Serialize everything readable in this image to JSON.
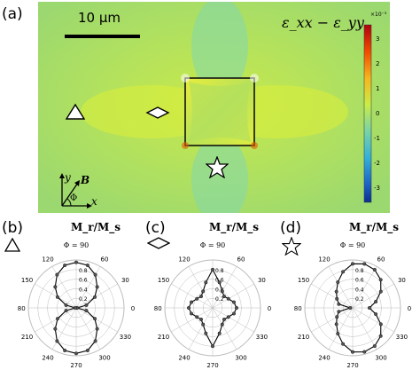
{
  "panel_a": {
    "letter": "(a)",
    "scale_bar_label": "10 μm",
    "strain_label": "ε_xx − ε_yy",
    "colorbar": {
      "exponent": "×10⁻³",
      "ticks": [
        "3",
        "2",
        "1",
        "0",
        "-1",
        "-2",
        "-3"
      ],
      "colors": [
        "#c21f00",
        "#f06a00",
        "#f7c219",
        "#c2ea4a",
        "#7fd4a0",
        "#38b8d6",
        "#0d55b8"
      ]
    },
    "axes": {
      "y": "y",
      "x": "x",
      "b": "B",
      "phi": "Φ"
    },
    "markers": [
      "triangle",
      "diamond",
      "star"
    ]
  },
  "polar_common": {
    "title": "M_r/M_s",
    "phi_label": "Φ = 90",
    "angle_labels": [
      "120",
      "60",
      "150",
      "30",
      "180",
      "0",
      "210",
      "330",
      "240",
      "300",
      "270"
    ]
  },
  "polar_panels": [
    {
      "letter": "(b)",
      "marker": "triangle-icon",
      "r_ticks": [
        "0.2",
        "0.4",
        "0.6",
        "0.8"
      ]
    },
    {
      "letter": "(c)",
      "marker": "diamond-icon",
      "r_ticks": [
        "0.2",
        "0.4",
        "0.6",
        "0.8"
      ]
    },
    {
      "letter": "(d)",
      "marker": "star-icon",
      "r_ticks": [
        "0.2",
        "0.4",
        "0.6",
        "0.8"
      ]
    }
  ],
  "chart_data": [
    {
      "type": "scatter",
      "polar": true,
      "title": "M_r/M_s",
      "r_ticks": [
        0.2,
        0.4,
        0.6,
        0.8
      ],
      "series": [
        {
          "theta_deg": [
            0,
            15,
            30,
            45,
            60,
            75,
            90,
            105,
            120,
            135,
            150,
            165,
            180,
            195,
            210,
            225,
            240,
            255,
            270,
            285,
            300,
            315,
            330,
            345
          ],
          "r": [
            0.02,
            0.22,
            0.45,
            0.62,
            0.8,
            0.92,
            0.95,
            0.92,
            0.8,
            0.62,
            0.45,
            0.22,
            0.02,
            0.22,
            0.45,
            0.62,
            0.8,
            0.92,
            0.95,
            0.92,
            0.8,
            0.62,
            0.45,
            0.22
          ]
        }
      ]
    },
    {
      "type": "scatter",
      "polar": true,
      "title": "M_r/M_s",
      "r_ticks": [
        0.2,
        0.4,
        0.6,
        0.8
      ],
      "series": [
        {
          "theta_deg": [
            0,
            15,
            30,
            45,
            60,
            75,
            90,
            105,
            120,
            135,
            150,
            165,
            180,
            195,
            210,
            225,
            240,
            255,
            270,
            285,
            300,
            315,
            330,
            345
          ],
          "r": [
            0.5,
            0.46,
            0.38,
            0.34,
            0.4,
            0.55,
            0.8,
            0.55,
            0.4,
            0.34,
            0.38,
            0.46,
            0.5,
            0.46,
            0.38,
            0.34,
            0.4,
            0.55,
            0.8,
            0.55,
            0.4,
            0.34,
            0.38,
            0.46
          ]
        }
      ]
    },
    {
      "type": "scatter",
      "polar": true,
      "title": "M_r/M_s",
      "r_ticks": [
        0.2,
        0.4,
        0.6,
        0.8
      ],
      "series": [
        {
          "theta_deg": [
            0,
            15,
            30,
            45,
            60,
            75,
            90,
            105,
            120,
            135,
            150,
            165,
            180,
            195,
            210,
            225,
            240,
            255,
            270,
            285,
            300,
            315,
            330,
            345
          ],
          "r": [
            0.35,
            0.5,
            0.68,
            0.83,
            0.92,
            0.95,
            0.92,
            0.78,
            0.62,
            0.48,
            0.38,
            0.3,
            0.05,
            0.3,
            0.38,
            0.48,
            0.62,
            0.78,
            0.92,
            0.95,
            0.92,
            0.83,
            0.68,
            0.5
          ]
        }
      ]
    }
  ]
}
